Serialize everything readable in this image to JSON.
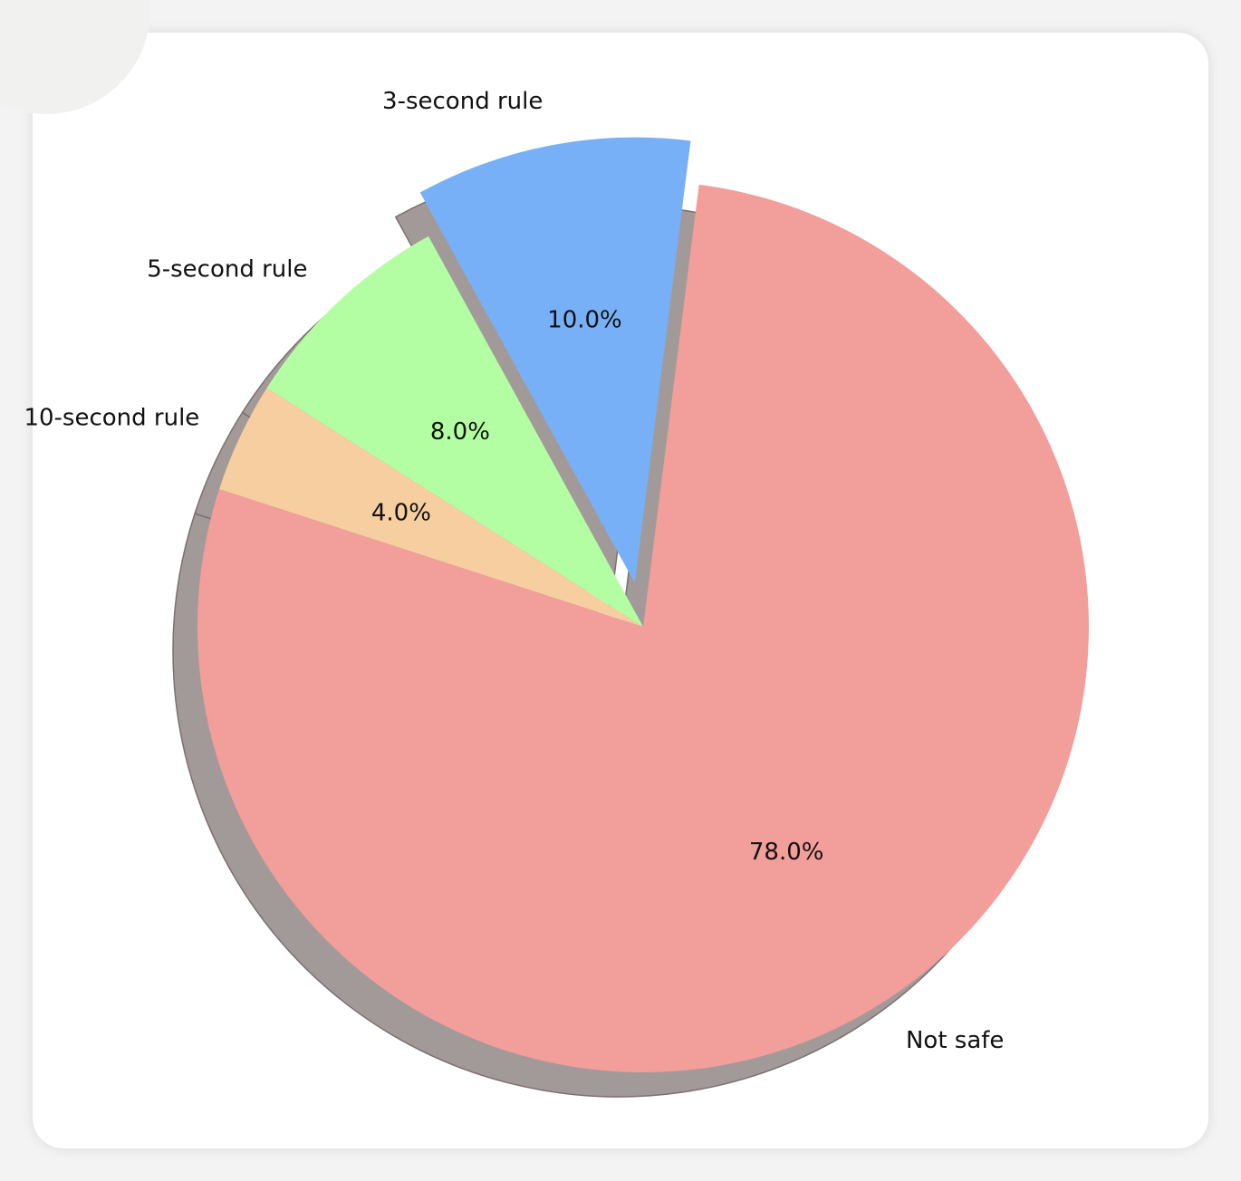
{
  "chart_data": {
    "type": "pie",
    "categories": [
      "3-second rule",
      "Not safe",
      "10-second rule",
      "5-second rule"
    ],
    "values": [
      10.0,
      78.0,
      4.0,
      8.0
    ],
    "percent_labels": [
      "10.0%",
      "78.0%",
      "4.0%",
      "8.0%"
    ],
    "colors": [
      "#78b0f7",
      "#f29e9b",
      "#f6cea0",
      "#b3fea2"
    ],
    "exploded": [
      "3-second rule"
    ],
    "shadow": true,
    "shadow_color": "#a29a99",
    "start_direction": "slightly right of top",
    "counterclock": false,
    "title": "",
    "legend": "none"
  }
}
